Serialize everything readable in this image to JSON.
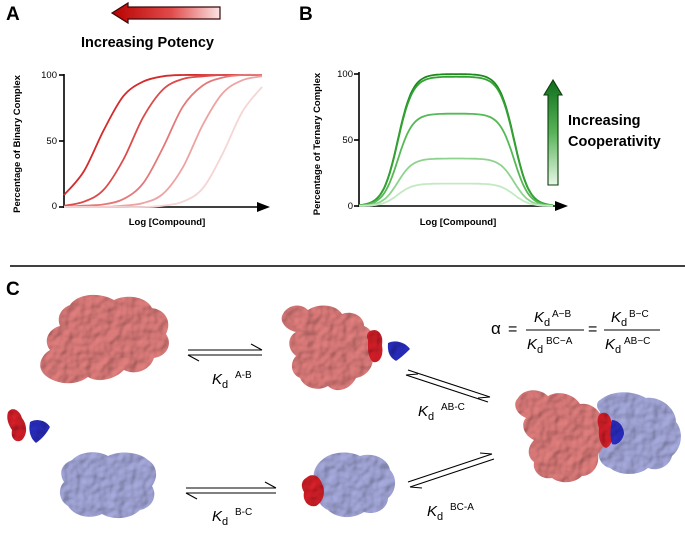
{
  "panels": {
    "a": {
      "letter": "A",
      "heading": "Increasing Potency",
      "ylabel": "Percentage of Binary Complex",
      "xlabel": "Log [Compound]",
      "yticks": [
        "0",
        "50",
        "100"
      ]
    },
    "b": {
      "letter": "B",
      "heading_line1": "Increasing",
      "heading_line2": "Cooperativity",
      "ylabel": "Percentage of Ternary Complex",
      "xlabel": "Log [Compound]",
      "yticks": [
        "0",
        "50",
        "100"
      ]
    },
    "c": {
      "letter": "C",
      "equation": {
        "alpha": "α",
        "eq1": "=",
        "eq2": "=",
        "k": "K",
        "d": "d",
        "num1": "A−B",
        "den1": "BC−A",
        "num2": "B−C",
        "den2": "AB−C"
      },
      "labels": {
        "k": "K",
        "d": "d",
        "ab": "A-B",
        "bc": "B-C",
        "abc": "AB-C",
        "bca": "BC-A"
      }
    }
  },
  "colors": {
    "red_series": [
      "#d42b2b",
      "#dd4a4a",
      "#e57878",
      "#eea3a3",
      "#f6d5d5"
    ],
    "green_series": [
      "#1e8a1e",
      "#33a233",
      "#55b955",
      "#8dd38d",
      "#c3e9c3"
    ],
    "protein_a": "#e07a79",
    "protein_c": "#aaaee0",
    "ligand_red": "#d8202a",
    "ligand_blue": "#2a2ec0"
  },
  "chart_data": [
    {
      "type": "line",
      "panel": "A",
      "xlabel": "Log [Compound]",
      "ylabel": "Percentage of Binary Complex",
      "ylim": [
        0,
        100
      ],
      "x": [
        0,
        1,
        2,
        3,
        4,
        5,
        6,
        7,
        8,
        9,
        10
      ],
      "series": [
        {
          "values": [
            9,
            27,
            58,
            84,
            95,
            99,
            100,
            100,
            100,
            100,
            100
          ]
        },
        {
          "values": [
            1,
            4,
            13,
            36,
            68,
            89,
            97,
            99,
            100,
            100,
            100
          ]
        },
        {
          "values": [
            0,
            1,
            2,
            6,
            18,
            45,
            76,
            92,
            98,
            100,
            100
          ]
        },
        {
          "values": [
            0,
            0,
            0,
            1,
            3,
            10,
            30,
            62,
            86,
            96,
            99
          ]
        },
        {
          "values": [
            0,
            0,
            0,
            0,
            0,
            1,
            4,
            14,
            40,
            72,
            91
          ]
        }
      ]
    },
    {
      "type": "line",
      "panel": "B",
      "xlabel": "Log [Compound]",
      "ylabel": "Percentage of Ternary Complex",
      "ylim": [
        0,
        100
      ],
      "x": [
        0,
        1,
        2,
        3,
        4,
        5,
        6,
        7,
        8,
        9,
        10
      ],
      "series": [
        {
          "peak": 100
        },
        {
          "peak": 98
        },
        {
          "peak": 70
        },
        {
          "peak": 36
        },
        {
          "peak": 17
        }
      ]
    }
  ]
}
